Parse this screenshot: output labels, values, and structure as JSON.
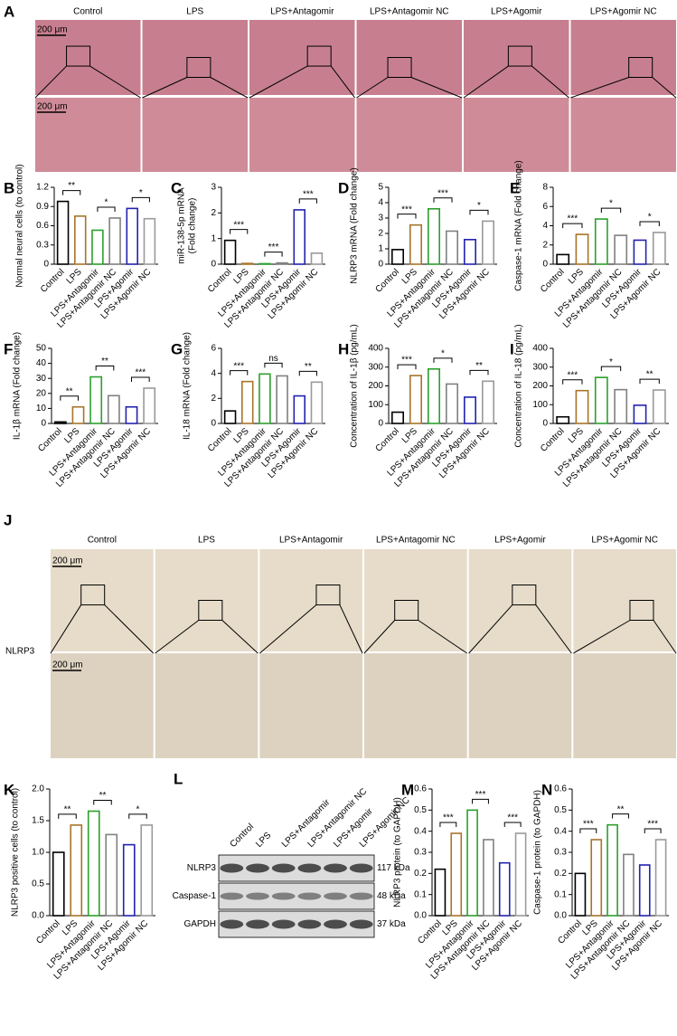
{
  "chart_data": [
    {
      "panel": "B",
      "type": "bar",
      "ylabel": "Normal neural cells (to control)",
      "categories": [
        "Control",
        "LPS",
        "LPS+Antagomir",
        "LPS+Antagomir NC",
        "LPS+Agomir",
        "LPS+Agomir NC"
      ],
      "values": [
        0.98,
        0.75,
        0.53,
        0.72,
        0.87,
        0.71
      ],
      "colors": [
        "#000000",
        "#a8742a",
        "#2ca02c",
        "#808080",
        "#2323b0",
        "#9a9a9a"
      ],
      "ylim": [
        0,
        1.2
      ],
      "yticks": [
        0,
        0.3,
        0.6,
        0.9,
        1.2
      ],
      "comparisons": [
        {
          "pair": [
            "Control",
            "LPS"
          ],
          "label": "**"
        },
        {
          "pair": [
            "LPS+Antagomir",
            "LPS+Antagomir NC"
          ],
          "label": "*"
        },
        {
          "pair": [
            "LPS+Agomir",
            "LPS+Agomir NC"
          ],
          "label": "*"
        }
      ]
    },
    {
      "panel": "C",
      "type": "bar",
      "ylabel": [
        "miR-138-5p mRNA",
        "(Fold change)"
      ],
      "categories": [
        "Control",
        "LPS",
        "LPS+Antagomir",
        "LPS+Antagomir NC",
        "LPS+Agomir",
        "LPS+Agomir NC"
      ],
      "values": [
        0.93,
        0.03,
        0.02,
        0.05,
        2.12,
        0.43
      ],
      "colors": [
        "#000000",
        "#a8742a",
        "#2ca02c",
        "#808080",
        "#2323b0",
        "#9a9a9a"
      ],
      "ylim": [
        0,
        3
      ],
      "yticks": [
        0,
        1,
        2,
        3
      ],
      "comparisons": [
        {
          "pair": [
            "Control",
            "LPS"
          ],
          "label": "***"
        },
        {
          "pair": [
            "LPS+Antagomir",
            "LPS+Antagomir NC"
          ],
          "label": "***"
        },
        {
          "pair": [
            "LPS+Agomir",
            "LPS+Agomir NC"
          ],
          "label": "***"
        }
      ]
    },
    {
      "panel": "D",
      "type": "bar",
      "ylabel": "NLRP3 mRNA (Fold change)",
      "categories": [
        "Control",
        "LPS",
        "LPS+Antagomir",
        "LPS+Antagomir NC",
        "LPS+Agomir",
        "LPS+Agomir NC"
      ],
      "values": [
        0.95,
        2.55,
        3.6,
        2.15,
        1.6,
        2.8
      ],
      "colors": [
        "#000000",
        "#a8742a",
        "#2ca02c",
        "#808080",
        "#2323b0",
        "#9a9a9a"
      ],
      "ylim": [
        0,
        5
      ],
      "yticks": [
        0,
        1,
        2,
        3,
        4,
        5
      ],
      "comparisons": [
        {
          "pair": [
            "Control",
            "LPS"
          ],
          "label": "***"
        },
        {
          "pair": [
            "LPS+Antagomir",
            "LPS+Antagomir NC"
          ],
          "label": "***"
        },
        {
          "pair": [
            "LPS+Agomir",
            "LPS+Agomir NC"
          ],
          "label": "*"
        }
      ]
    },
    {
      "panel": "E",
      "type": "bar",
      "ylabel": "Caspase-1 mRNA (Fold change)",
      "categories": [
        "Control",
        "LPS",
        "LPS+Antagomir",
        "LPS+Antagomir NC",
        "LPS+Agomir",
        "LPS+Agomir NC"
      ],
      "values": [
        1.0,
        3.1,
        4.7,
        3.0,
        2.5,
        3.3
      ],
      "colors": [
        "#000000",
        "#a8742a",
        "#2ca02c",
        "#808080",
        "#2323b0",
        "#9a9a9a"
      ],
      "ylim": [
        0,
        8
      ],
      "yticks": [
        0,
        2,
        4,
        6,
        8
      ],
      "comparisons": [
        {
          "pair": [
            "Control",
            "LPS"
          ],
          "label": "***"
        },
        {
          "pair": [
            "LPS+Antagomir",
            "LPS+Antagomir NC"
          ],
          "label": "*"
        },
        {
          "pair": [
            "LPS+Agomir",
            "LPS+Agomir NC"
          ],
          "label": "*"
        }
      ]
    },
    {
      "panel": "F",
      "type": "bar",
      "ylabel": "IL-1β mRNA (Fold change)",
      "categories": [
        "Control",
        "LPS",
        "LPS+Antagomir",
        "LPS+Antagomir NC",
        "LPS+Agomir",
        "LPS+Agomir NC"
      ],
      "values": [
        1,
        11,
        31,
        18.5,
        11,
        23.5
      ],
      "colors": [
        "#000000",
        "#a8742a",
        "#2ca02c",
        "#808080",
        "#2323b0",
        "#9a9a9a"
      ],
      "ylim": [
        0,
        50
      ],
      "yticks": [
        0,
        10,
        20,
        30,
        40,
        50
      ],
      "comparisons": [
        {
          "pair": [
            "Control",
            "LPS"
          ],
          "label": "**"
        },
        {
          "pair": [
            "LPS+Antagomir",
            "LPS+Antagomir NC"
          ],
          "label": "**"
        },
        {
          "pair": [
            "LPS+Agomir",
            "LPS+Agomir NC"
          ],
          "label": "***"
        }
      ]
    },
    {
      "panel": "G",
      "type": "bar",
      "ylabel": "IL-18 mRNA (Fold change)",
      "categories": [
        "Control",
        "LPS",
        "LPS+Antagomir",
        "LPS+Antagomir NC",
        "LPS+Agomir",
        "LPS+Agomir NC"
      ],
      "values": [
        1.0,
        3.35,
        3.95,
        3.8,
        2.2,
        3.3
      ],
      "colors": [
        "#000000",
        "#a8742a",
        "#2ca02c",
        "#808080",
        "#2323b0",
        "#9a9a9a"
      ],
      "ylim": [
        0,
        6
      ],
      "yticks": [
        0,
        2,
        4,
        6
      ],
      "comparisons": [
        {
          "pair": [
            "Control",
            "LPS"
          ],
          "label": "***"
        },
        {
          "pair": [
            "LPS+Antagomir",
            "LPS+Antagomir NC"
          ],
          "label": "ns"
        },
        {
          "pair": [
            "LPS+Agomir",
            "LPS+Agomir NC"
          ],
          "label": "**"
        }
      ]
    },
    {
      "panel": "H",
      "type": "bar",
      "ylabel": "Concentration of IL-1β (pg/mL)",
      "categories": [
        "Control",
        "LPS",
        "LPS+Antagomir",
        "LPS+Antagomir NC",
        "LPS+Agomir",
        "LPS+Agomir NC"
      ],
      "values": [
        60,
        255,
        290,
        210,
        140,
        225
      ],
      "colors": [
        "#000000",
        "#a8742a",
        "#2ca02c",
        "#808080",
        "#2323b0",
        "#9a9a9a"
      ],
      "ylim": [
        0,
        400
      ],
      "yticks": [
        0,
        100,
        200,
        300,
        400
      ],
      "comparisons": [
        {
          "pair": [
            "Control",
            "LPS"
          ],
          "label": "***"
        },
        {
          "pair": [
            "LPS+Antagomir",
            "LPS+Antagomir NC"
          ],
          "label": "*"
        },
        {
          "pair": [
            "LPS+Agomir",
            "LPS+Agomir NC"
          ],
          "label": "**"
        }
      ]
    },
    {
      "panel": "I",
      "type": "bar",
      "ylabel": "Concentration of IL-18 (pg/mL)",
      "categories": [
        "Control",
        "LPS",
        "LPS+Antagomir",
        "LPS+Antagomir NC",
        "LPS+Agomir",
        "LPS+Agomir NC"
      ],
      "values": [
        35,
        175,
        245,
        180,
        97,
        178
      ],
      "colors": [
        "#000000",
        "#a8742a",
        "#2ca02c",
        "#808080",
        "#2323b0",
        "#9a9a9a"
      ],
      "ylim": [
        0,
        400
      ],
      "yticks": [
        0,
        100,
        200,
        300,
        400
      ],
      "comparisons": [
        {
          "pair": [
            "Control",
            "LPS"
          ],
          "label": "***"
        },
        {
          "pair": [
            "LPS+Antagomir",
            "LPS+Antagomir NC"
          ],
          "label": "*"
        },
        {
          "pair": [
            "LPS+Agomir",
            "LPS+Agomir NC"
          ],
          "label": "**"
        }
      ]
    },
    {
      "panel": "K",
      "type": "bar",
      "ylabel": "NLRP3 positive cells (to control)",
      "categories": [
        "Control",
        "LPS",
        "LPS+Antagomir",
        "LPS+Antagomir NC",
        "LPS+Agomir",
        "LPS+Agomir NC"
      ],
      "values": [
        1.0,
        1.43,
        1.65,
        1.28,
        1.12,
        1.43
      ],
      "colors": [
        "#000000",
        "#a8742a",
        "#2ca02c",
        "#808080",
        "#2323b0",
        "#9a9a9a"
      ],
      "ylim": [
        0,
        2
      ],
      "yticks": [
        {
          "value": 0,
          "label": "0.0"
        },
        {
          "value": 0.5,
          "label": "0.5"
        },
        {
          "value": 1,
          "label": "1.0"
        },
        {
          "value": 1.5,
          "label": "1.5"
        },
        {
          "value": 2,
          "label": "2.0"
        }
      ],
      "comparisons": [
        {
          "pair": [
            "Control",
            "LPS"
          ],
          "label": "**"
        },
        {
          "pair": [
            "LPS+Antagomir",
            "LPS+Antagomir NC"
          ],
          "label": "**"
        },
        {
          "pair": [
            "LPS+Agomir",
            "LPS+Agomir NC"
          ],
          "label": "*"
        }
      ]
    },
    {
      "panel": "M",
      "type": "bar",
      "ylabel": "NLRP3 protein (to GAPDH)",
      "categories": [
        "Control",
        "LPS",
        "LPS+Antagomir",
        "LPS+Antagomir NC",
        "LPS+Agomir",
        "LPS+Agomir NC"
      ],
      "values": [
        0.22,
        0.39,
        0.5,
        0.36,
        0.25,
        0.39
      ],
      "colors": [
        "#000000",
        "#a8742a",
        "#2ca02c",
        "#808080",
        "#2323b0",
        "#9a9a9a"
      ],
      "ylim": [
        0,
        0.6
      ],
      "yticks": [
        {
          "value": 0,
          "label": "0.0"
        },
        0.1,
        0.2,
        0.3,
        0.4,
        0.5,
        0.6
      ],
      "comparisons": [
        {
          "pair": [
            "Control",
            "LPS"
          ],
          "label": "***"
        },
        {
          "pair": [
            "LPS+Antagomir",
            "LPS+Antagomir NC"
          ],
          "label": "***"
        },
        {
          "pair": [
            "LPS+Agomir",
            "LPS+Agomir NC"
          ],
          "label": "***"
        }
      ]
    },
    {
      "panel": "N",
      "type": "bar",
      "ylabel": "Caspase-1 protein (to GAPDH)",
      "categories": [
        "Control",
        "LPS",
        "LPS+Antagomir",
        "LPS+Antagomir NC",
        "LPS+Agomir",
        "LPS+Agomir NC"
      ],
      "values": [
        0.2,
        0.36,
        0.43,
        0.29,
        0.24,
        0.36
      ],
      "colors": [
        "#000000",
        "#a8742a",
        "#2ca02c",
        "#808080",
        "#2323b0",
        "#9a9a9a"
      ],
      "ylim": [
        0,
        0.6
      ],
      "yticks": [
        {
          "value": 0,
          "label": "0.0"
        },
        0.1,
        0.2,
        0.3,
        0.4,
        0.5,
        0.6
      ],
      "comparisons": [
        {
          "pair": [
            "Control",
            "LPS"
          ],
          "label": "***"
        },
        {
          "pair": [
            "LPS+Antagomir",
            "LPS+Antagomir NC"
          ],
          "label": "**"
        },
        {
          "pair": [
            "LPS+Agomir",
            "LPS+Agomir NC"
          ],
          "label": "***"
        }
      ]
    }
  ],
  "histology": [
    {
      "panel": "A",
      "columns": [
        "Control",
        "LPS",
        "LPS+Antagomir",
        "LPS+Antagomir NC",
        "LPS+Agomir",
        "LPS+Agomir NC"
      ],
      "scale_bars": [
        "200 μm",
        "200 μm"
      ]
    },
    {
      "panel": "J",
      "columns": [
        "Control",
        "LPS",
        "LPS+Antagomir",
        "LPS+Antagomir NC",
        "LPS+Agomir",
        "LPS+Agomir NC"
      ],
      "scale_bars": [
        "200 μm",
        "200 μm"
      ],
      "stain": "NLRP3"
    }
  ],
  "western_blot": {
    "panel": "L",
    "lanes": [
      "Control",
      "LPS",
      "LPS+Antagomir",
      "LPS+Antagomir NC",
      "LPS+Agomir",
      "LPS+Agomir NC"
    ],
    "rows": [
      {
        "protein": "NLRP3",
        "size": "117 kDa"
      },
      {
        "protein": "Caspase-1",
        "size": "48 kDa"
      },
      {
        "protein": "GAPDH",
        "size": "37 kDa"
      }
    ]
  }
}
